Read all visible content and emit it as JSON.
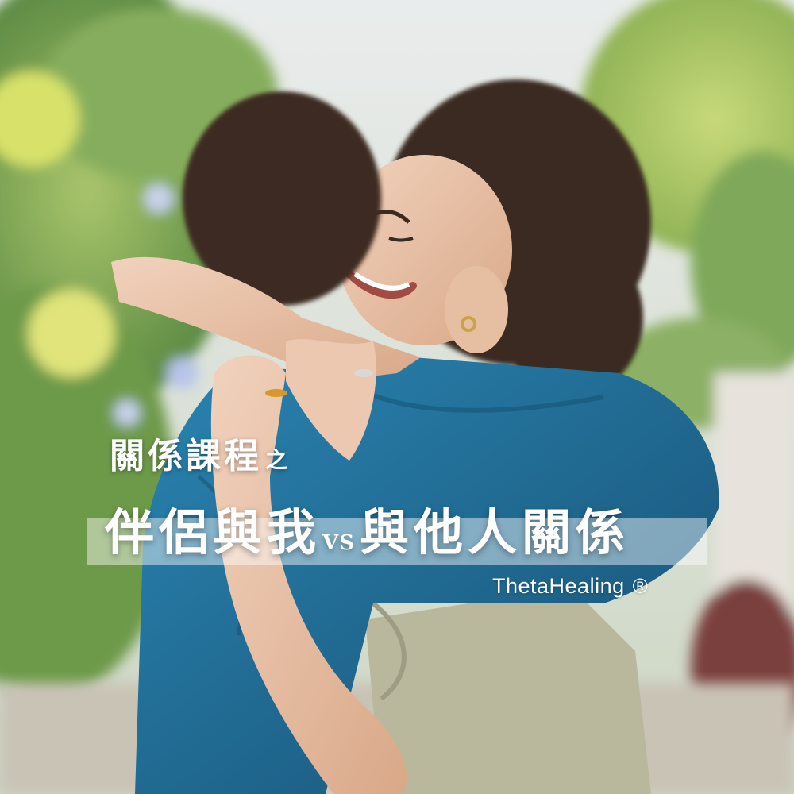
{
  "headline": {
    "line1": "關係課程",
    "line1_suffix": "之",
    "part_a": "伴侶與我",
    "vs": "VS",
    "part_b": "與他人關係"
  },
  "brand": {
    "name": "ThetaHealing",
    "mark": "®"
  },
  "colors": {
    "jacket": "#1f6e99",
    "shirt": "#b9b79c",
    "hair": "#3a2a20",
    "foliage": "#7fa85a",
    "text": "#ffffff"
  }
}
